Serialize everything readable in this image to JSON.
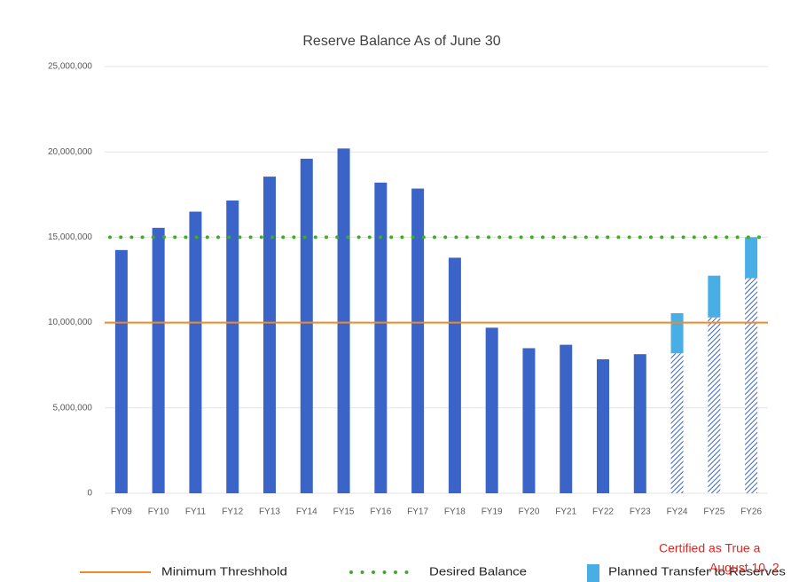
{
  "chart_data": {
    "type": "bar",
    "title": "Reserve Balance As of June 30",
    "categories": [
      "FY09",
      "FY10",
      "FY11",
      "FY12",
      "FY13",
      "FY14",
      "FY15",
      "FY16",
      "FY17",
      "FY18",
      "FY19",
      "FY20",
      "FY21",
      "FY22",
      "FY23",
      "FY24",
      "FY25",
      "FY26"
    ],
    "stacked": true,
    "series": [
      {
        "color": "#3a64c8",
        "pattern": "solid",
        "values": [
          14250000,
          15550000,
          16500000,
          17150000,
          18550000,
          19600000,
          20200000,
          18200000,
          17850000,
          13800000,
          9700000,
          8500000,
          8700000,
          7850000,
          8150000,
          null,
          null,
          null
        ]
      },
      {
        "color": "#3a64c8",
        "pattern": "hatched",
        "values": [
          null,
          null,
          null,
          null,
          null,
          null,
          null,
          null,
          null,
          null,
          null,
          null,
          null,
          null,
          null,
          8200000,
          10300000,
          12600000
        ]
      },
      {
        "name": "Planned Transfer to Reserves",
        "color": "#4aaee6",
        "pattern": "solid",
        "values": [
          null,
          null,
          null,
          null,
          null,
          null,
          null,
          null,
          null,
          null,
          null,
          null,
          null,
          null,
          null,
          2350000,
          2450000,
          2400000
        ]
      }
    ],
    "reference_lines": [
      {
        "name": "Minimum Threshhold",
        "value": 10000000,
        "color": "#f08a24",
        "style": "solid"
      },
      {
        "name": "Desired Balance",
        "value": 15000000,
        "color": "#43a82c",
        "style": "dotted"
      }
    ],
    "ylim": [
      0,
      25000000
    ],
    "yticks": [
      0,
      {
        "value": 5000000,
        "label": "5,000,000"
      },
      {
        "value": 10000000,
        "label": "10,000,000"
      },
      {
        "value": 15000000,
        "label": "15,000,000"
      },
      {
        "value": 20000000,
        "label": "20,000,000"
      },
      {
        "value": 25000000,
        "label": "25,000,000"
      }
    ],
    "grid": true,
    "legend": "bottom",
    "annotations": [
      "Certified as True a",
      "August 10, 2"
    ]
  }
}
